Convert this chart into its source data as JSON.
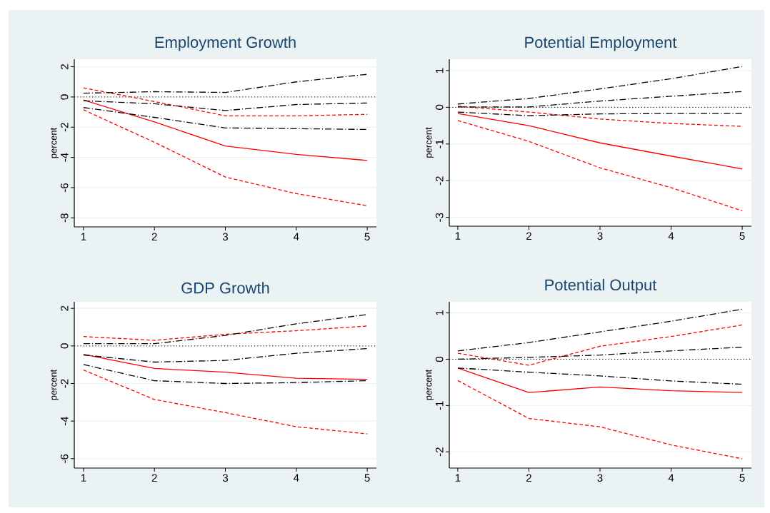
{
  "chart_data": [
    {
      "type": "line",
      "title": "Employment Growth",
      "ylabel": "percent",
      "x": [
        1,
        2,
        3,
        4,
        5
      ],
      "xlim": [
        0.87,
        5.13
      ],
      "xticks": [
        1,
        2,
        3,
        4,
        5
      ],
      "ylim": [
        -8.6,
        2.5
      ],
      "yticks": [
        -8,
        -6,
        -4,
        -2,
        0,
        2
      ],
      "grid": "y",
      "ref_lines": [
        {
          "axis": "y",
          "value": 0,
          "color": "#000000",
          "line_style": "dotted"
        }
      ],
      "series": [
        {
          "color": "#ff0000",
          "line_style": "solid",
          "values": [
            -0.2,
            -1.65,
            -3.25,
            -3.8,
            -4.2
          ]
        },
        {
          "color": "#ff0000",
          "line_style": "dashed",
          "values": [
            -0.85,
            -3.0,
            -5.3,
            -6.4,
            -7.2
          ]
        },
        {
          "color": "#ff0000",
          "line_style": "dashed",
          "values": [
            0.6,
            -0.3,
            -1.25,
            -1.25,
            -1.15
          ]
        },
        {
          "color": "#000000",
          "line_style": "dashdot",
          "values": [
            0.25,
            0.35,
            0.3,
            1.0,
            1.5
          ]
        },
        {
          "color": "#000000",
          "line_style": "dashdot",
          "values": [
            -0.25,
            -0.45,
            -0.9,
            -0.5,
            -0.4
          ]
        },
        {
          "color": "#000000",
          "line_style": "dashdot",
          "values": [
            -0.7,
            -1.35,
            -2.05,
            -2.1,
            -2.15
          ]
        }
      ]
    },
    {
      "type": "line",
      "title": "Potential Employment",
      "ylabel": "percent",
      "x": [
        1,
        2,
        3,
        4,
        5
      ],
      "xlim": [
        0.88,
        5.13
      ],
      "xticks": [
        1,
        2,
        3,
        4,
        5
      ],
      "ylim": [
        -3.24,
        1.31
      ],
      "yticks": [
        -3,
        -2,
        -1,
        0,
        1
      ],
      "grid": "y",
      "ref_lines": [
        {
          "axis": "y",
          "value": 0,
          "color": "#000000",
          "line_style": "dotted"
        }
      ],
      "series": [
        {
          "color": "#ff0000",
          "line_style": "solid",
          "values": [
            -0.17,
            -0.5,
            -0.97,
            -1.33,
            -1.68
          ]
        },
        {
          "color": "#ff0000",
          "line_style": "dashed",
          "values": [
            -0.36,
            -0.93,
            -1.65,
            -2.19,
            -2.82
          ]
        },
        {
          "color": "#ff0000",
          "line_style": "dashed",
          "values": [
            0.03,
            -0.13,
            -0.32,
            -0.44,
            -0.52
          ]
        },
        {
          "color": "#000000",
          "line_style": "dashdot",
          "values": [
            0.09,
            0.24,
            0.5,
            0.78,
            1.11
          ]
        },
        {
          "color": "#000000",
          "line_style": "dashdot",
          "values": [
            0.01,
            0.01,
            0.17,
            0.3,
            0.43
          ]
        },
        {
          "color": "#000000",
          "line_style": "dashdot",
          "values": [
            -0.13,
            -0.23,
            -0.18,
            -0.17,
            -0.17
          ]
        }
      ]
    },
    {
      "type": "line",
      "title": "GDP Growth",
      "ylabel": "percent",
      "x": [
        1,
        2,
        3,
        4,
        5
      ],
      "xlim": [
        0.87,
        5.13
      ],
      "xticks": [
        1,
        2,
        3,
        4,
        5
      ],
      "ylim": [
        -6.5,
        2.35
      ],
      "yticks": [
        -6,
        -4,
        -2,
        0,
        2
      ],
      "grid": "y",
      "ref_lines": [
        {
          "axis": "y",
          "value": 0,
          "color": "#000000",
          "line_style": "dotted"
        }
      ],
      "series": [
        {
          "color": "#ff0000",
          "line_style": "solid",
          "values": [
            -0.45,
            -1.2,
            -1.4,
            -1.72,
            -1.78
          ]
        },
        {
          "color": "#ff0000",
          "line_style": "dashed",
          "values": [
            -1.28,
            -2.85,
            -3.55,
            -4.3,
            -4.68
          ]
        },
        {
          "color": "#ff0000",
          "line_style": "dashed",
          "values": [
            0.5,
            0.3,
            0.62,
            0.81,
            1.06
          ]
        },
        {
          "color": "#000000",
          "line_style": "dashdot",
          "values": [
            0.12,
            0.12,
            0.56,
            1.18,
            1.67
          ]
        },
        {
          "color": "#000000",
          "line_style": "dashdot",
          "values": [
            -0.48,
            -0.86,
            -0.77,
            -0.39,
            -0.14
          ]
        },
        {
          "color": "#000000",
          "line_style": "dashdot",
          "values": [
            -0.99,
            -1.85,
            -2.0,
            -1.95,
            -1.85
          ]
        }
      ]
    },
    {
      "type": "line",
      "title": "Potential Output",
      "ylabel": "percent",
      "x": [
        1,
        2,
        3,
        4,
        5
      ],
      "xlim": [
        0.88,
        5.13
      ],
      "xticks": [
        1,
        2,
        3,
        4,
        5
      ],
      "ylim": [
        -2.35,
        1.24
      ],
      "yticks": [
        -2,
        -1,
        0,
        1
      ],
      "grid": "y",
      "ref_lines": [
        {
          "axis": "y",
          "value": 0,
          "color": "#000000",
          "line_style": "dotted"
        }
      ],
      "series": [
        {
          "color": "#ff0000",
          "line_style": "solid",
          "values": [
            -0.19,
            -0.72,
            -0.6,
            -0.68,
            -0.72
          ]
        },
        {
          "color": "#ff0000",
          "line_style": "dashed",
          "values": [
            -0.46,
            -1.28,
            -1.46,
            -1.85,
            -2.15
          ]
        },
        {
          "color": "#ff0000",
          "line_style": "dashed",
          "values": [
            0.13,
            -0.13,
            0.28,
            0.49,
            0.74
          ]
        },
        {
          "color": "#000000",
          "line_style": "dashdot",
          "values": [
            0.18,
            0.36,
            0.59,
            0.82,
            1.08
          ]
        },
        {
          "color": "#000000",
          "line_style": "dashdot",
          "values": [
            0.0,
            0.04,
            0.09,
            0.18,
            0.26
          ]
        },
        {
          "color": "#000000",
          "line_style": "dashdot",
          "values": [
            -0.19,
            -0.28,
            -0.36,
            -0.47,
            -0.54
          ]
        }
      ]
    }
  ]
}
